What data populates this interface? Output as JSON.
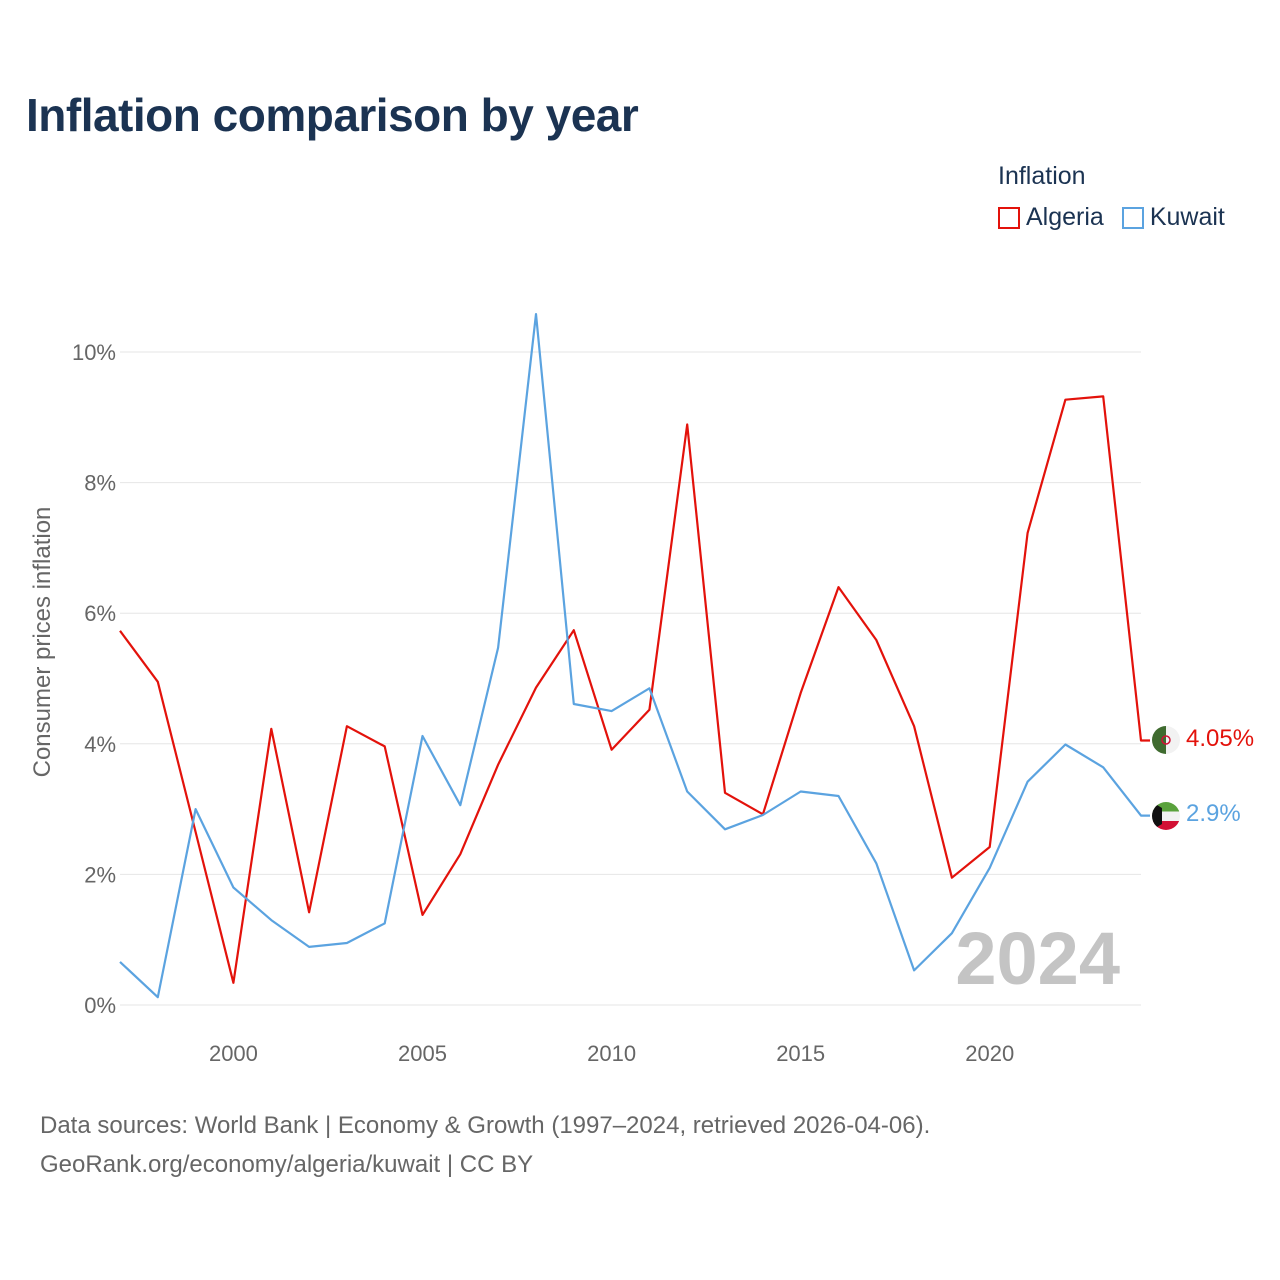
{
  "title": "Inflation comparison by year",
  "legend": {
    "title": "Inflation",
    "items": [
      {
        "label": "Algeria",
        "color": "#e3120b"
      },
      {
        "label": "Kuwait",
        "color": "#5ba3e0"
      }
    ]
  },
  "year_label": "2024",
  "footer": {
    "line1": "Data sources: World Bank | Economy & Growth (1997–2024, retrieved 2026-04-06).",
    "line2": "GeoRank.org/economy/algeria/kuwait | CC BY"
  },
  "chart_data": {
    "type": "line",
    "title": "Inflation comparison by year",
    "xlabel": "",
    "ylabel": "Consumer prices inflation",
    "xlim": [
      1997,
      2024
    ],
    "ylim": [
      0,
      10
    ],
    "x_ticks": [
      2000,
      2005,
      2010,
      2015,
      2020
    ],
    "x_tick_labels": [
      "2000",
      "2005",
      "2010",
      "2015",
      "2020"
    ],
    "y_ticks": [
      0,
      2,
      4,
      6,
      8,
      10
    ],
    "y_tick_labels": [
      "0%",
      "2%",
      "4%",
      "6%",
      "8%",
      "10%"
    ],
    "grid": true,
    "x": [
      1997,
      1998,
      1999,
      2000,
      2001,
      2002,
      2003,
      2004,
      2005,
      2006,
      2007,
      2008,
      2009,
      2010,
      2011,
      2012,
      2013,
      2014,
      2015,
      2016,
      2017,
      2018,
      2019,
      2020,
      2021,
      2022,
      2023,
      2024
    ],
    "series": [
      {
        "name": "Algeria",
        "color": "#e3120b",
        "end_label": "4.05%",
        "values": [
          5.73,
          4.95,
          2.65,
          0.34,
          4.23,
          1.42,
          4.27,
          3.96,
          1.38,
          2.31,
          3.68,
          4.86,
          5.74,
          3.91,
          4.52,
          8.89,
          3.25,
          2.92,
          4.78,
          6.4,
          5.59,
          4.27,
          1.95,
          2.42,
          7.23,
          9.27,
          9.32,
          4.05
        ]
      },
      {
        "name": "Kuwait",
        "color": "#5ba3e0",
        "end_label": "2.9%",
        "values": [
          0.66,
          0.12,
          3.0,
          1.8,
          1.3,
          0.89,
          0.95,
          1.25,
          4.12,
          3.06,
          5.47,
          10.58,
          4.61,
          4.5,
          4.85,
          3.27,
          2.69,
          2.91,
          3.27,
          3.2,
          2.17,
          0.53,
          1.1,
          2.1,
          3.42,
          3.99,
          3.64,
          2.9
        ]
      }
    ]
  }
}
